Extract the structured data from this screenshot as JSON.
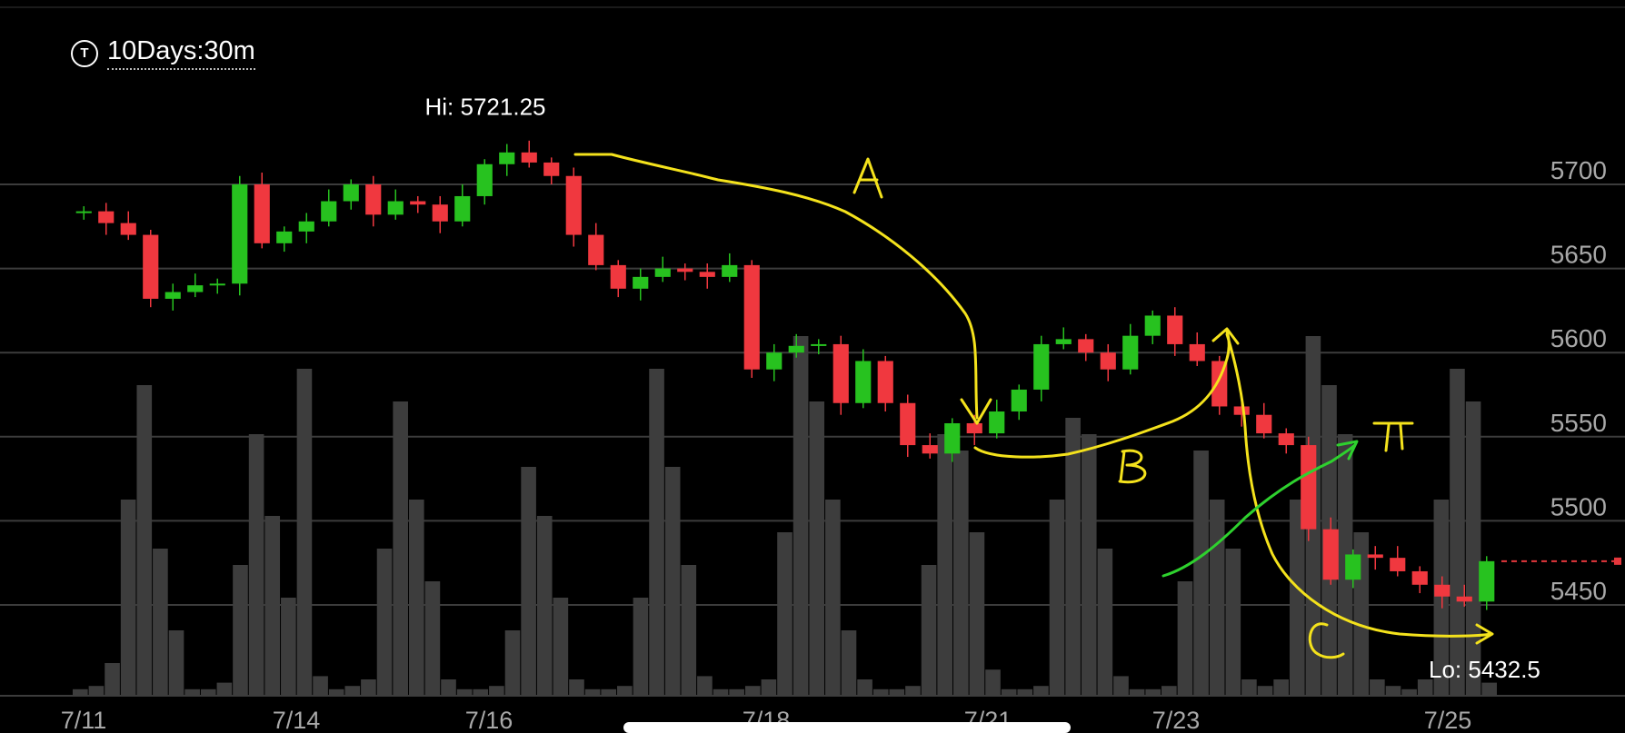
{
  "timeframe": {
    "label": "10Days:30m",
    "icon_glyph": "T"
  },
  "chart_data": {
    "type": "candlestick",
    "title": "",
    "xlabel": "",
    "ylabel": "",
    "ylim": [
      5418,
      5742
    ],
    "y_ticks": [
      {
        "value": 5700,
        "label": "5700"
      },
      {
        "value": 5650,
        "label": "5650"
      },
      {
        "value": 5600,
        "label": "5600"
      },
      {
        "value": 5550,
        "label": "5550"
      },
      {
        "value": 5500,
        "label": "5500"
      },
      {
        "value": 5450,
        "label": "5450"
      }
    ],
    "x_ticks": [
      "7/11",
      "7/14",
      "7/16",
      "7/18",
      "7/21",
      "7/23",
      "7/25"
    ],
    "grid": "horizontal",
    "high_label": {
      "text": "Hi: 5721.25",
      "value": 5721.25,
      "date": "7/16"
    },
    "low_label": {
      "text": "Lo: 5432.5",
      "value": 5432.5,
      "date": "7/25"
    },
    "last_price": 5476,
    "colors": {
      "up": "#27c21f",
      "down": "#f0383f",
      "grid": "#3c3c3c",
      "axis_text": "#a8a8a8",
      "volume": "#3d3d3d",
      "annotation": "#f4e21c",
      "annotation_green": "#2ed12e",
      "last_price_line": "#e5373c"
    },
    "price_path": [
      {
        "date": "7/11",
        "value": 5684
      },
      {
        "date": "7/11",
        "value": 5677
      },
      {
        "date": "7/11",
        "value": 5670
      },
      {
        "date": "7/11",
        "value": 5632
      },
      {
        "date": "7/12",
        "value": 5636
      },
      {
        "date": "7/12",
        "value": 5640
      },
      {
        "date": "7/12",
        "value": 5641
      },
      {
        "date": "7/14",
        "value": 5700
      },
      {
        "date": "7/14",
        "value": 5665
      },
      {
        "date": "7/14",
        "value": 5672
      },
      {
        "date": "7/15",
        "value": 5678
      },
      {
        "date": "7/15",
        "value": 5690
      },
      {
        "date": "7/15",
        "value": 5700
      },
      {
        "date": "7/15",
        "value": 5682
      },
      {
        "date": "7/15",
        "value": 5690
      },
      {
        "date": "7/16",
        "value": 5688
      },
      {
        "date": "7/16",
        "value": 5678
      },
      {
        "date": "7/16",
        "value": 5693
      },
      {
        "date": "7/16",
        "value": 5712
      },
      {
        "date": "7/16",
        "value": 5719
      },
      {
        "date": "7/17",
        "value": 5713
      },
      {
        "date": "7/17",
        "value": 5705
      },
      {
        "date": "7/17",
        "value": 5670
      },
      {
        "date": "7/17",
        "value": 5652
      },
      {
        "date": "7/17",
        "value": 5638
      },
      {
        "date": "7/17",
        "value": 5645
      },
      {
        "date": "7/18",
        "value": 5650
      },
      {
        "date": "7/18",
        "value": 5648
      },
      {
        "date": "7/18",
        "value": 5645
      },
      {
        "date": "7/18",
        "value": 5652
      },
      {
        "date": "7/18",
        "value": 5590
      },
      {
        "date": "7/19",
        "value": 5600
      },
      {
        "date": "7/19",
        "value": 5604
      },
      {
        "date": "7/19",
        "value": 5605
      },
      {
        "date": "7/19",
        "value": 5570
      },
      {
        "date": "7/19",
        "value": 5595
      },
      {
        "date": "7/19",
        "value": 5570
      },
      {
        "date": "7/20",
        "value": 5545
      },
      {
        "date": "7/21",
        "value": 5540
      },
      {
        "date": "7/21",
        "value": 5558
      },
      {
        "date": "7/21",
        "value": 5552
      },
      {
        "date": "7/22",
        "value": 5565
      },
      {
        "date": "7/22",
        "value": 5578
      },
      {
        "date": "7/22",
        "value": 5605
      },
      {
        "date": "7/22",
        "value": 5608
      },
      {
        "date": "7/22",
        "value": 5600
      },
      {
        "date": "7/23",
        "value": 5590
      },
      {
        "date": "7/23",
        "value": 5610
      },
      {
        "date": "7/23",
        "value": 5622
      },
      {
        "date": "7/23",
        "value": 5605
      },
      {
        "date": "7/23",
        "value": 5595
      },
      {
        "date": "7/24",
        "value": 5568
      },
      {
        "date": "7/24",
        "value": 5563
      },
      {
        "date": "7/24",
        "value": 5552
      },
      {
        "date": "7/24",
        "value": 5545
      },
      {
        "date": "7/24",
        "value": 5495
      },
      {
        "date": "7/24",
        "value": 5465
      },
      {
        "date": "7/24",
        "value": 5480
      },
      {
        "date": "7/24",
        "value": 5478
      },
      {
        "date": "7/25",
        "value": 5470
      },
      {
        "date": "7/25",
        "value": 5462
      },
      {
        "date": "7/25",
        "value": 5455
      },
      {
        "date": "7/25",
        "value": 5452
      },
      {
        "date": "7/25",
        "value": 5476
      }
    ],
    "volume_relative": [
      0.02,
      0.03,
      0.1,
      0.6,
      0.95,
      0.45,
      0.2,
      0.02,
      0.02,
      0.04,
      0.4,
      0.8,
      0.55,
      0.3,
      1.0,
      0.06,
      0.02,
      0.03,
      0.05,
      0.45,
      0.9,
      0.6,
      0.35,
      0.05,
      0.02,
      0.02,
      0.03,
      0.2,
      0.7,
      0.55,
      0.3,
      0.05,
      0.02,
      0.02,
      0.03,
      0.3,
      1.0,
      0.7,
      0.4,
      0.06,
      0.02,
      0.02,
      0.03,
      0.05,
      0.5,
      1.1,
      0.9,
      0.6,
      0.2,
      0.05,
      0.02,
      0.02,
      0.03,
      0.4,
      0.8,
      0.75,
      0.5,
      0.08,
      0.02,
      0.02,
      0.03,
      0.6,
      0.85,
      0.8,
      0.45,
      0.06,
      0.02,
      0.02,
      0.03,
      0.35,
      0.75,
      0.6,
      0.45,
      0.05,
      0.03,
      0.05,
      0.6,
      1.1,
      0.95,
      0.8,
      0.5,
      0.05,
      0.03,
      0.02,
      0.05,
      0.6,
      1.0,
      0.9,
      0.04
    ],
    "annotations": [
      {
        "text": "A",
        "kind": "handwritten",
        "color": "yellow"
      },
      {
        "text": "B",
        "kind": "handwritten",
        "color": "yellow"
      },
      {
        "text": "C",
        "kind": "handwritten",
        "color": "yellow"
      },
      {
        "text": "π",
        "kind": "handwritten",
        "color": "yellow"
      }
    ]
  }
}
